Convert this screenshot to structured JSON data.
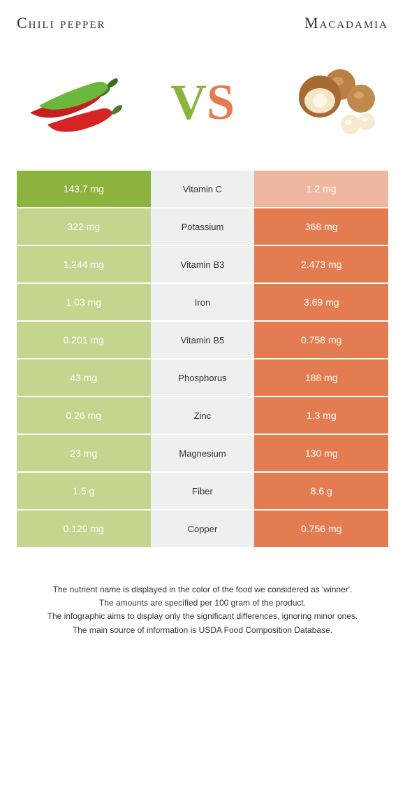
{
  "header": {
    "left_title": "Chili pepper",
    "right_title": "Macadamia"
  },
  "vs": {
    "v": "V",
    "s": "S"
  },
  "colors": {
    "green_solid": "#8cb33d",
    "green_faded": "#c4d68d",
    "orange_solid": "#e47c52",
    "orange_faded": "#efb79f",
    "mid_bg": "#eef0ef"
  },
  "rows": [
    {
      "left": "143.7 mg",
      "label": "Vitamin C",
      "right": "1.2 mg",
      "winner": "left"
    },
    {
      "left": "322 mg",
      "label": "Potassium",
      "right": "368 mg",
      "winner": "right"
    },
    {
      "left": "1.244 mg",
      "label": "Vitamin B3",
      "right": "2.473 mg",
      "winner": "right"
    },
    {
      "left": "1.03 mg",
      "label": "Iron",
      "right": "3.69 mg",
      "winner": "right"
    },
    {
      "left": "0.201 mg",
      "label": "Vitamin B5",
      "right": "0.758 mg",
      "winner": "right"
    },
    {
      "left": "43 mg",
      "label": "Phosphorus",
      "right": "188 mg",
      "winner": "right"
    },
    {
      "left": "0.26 mg",
      "label": "Zinc",
      "right": "1.3 mg",
      "winner": "right"
    },
    {
      "left": "23 mg",
      "label": "Magnesium",
      "right": "130 mg",
      "winner": "right"
    },
    {
      "left": "1.5 g",
      "label": "Fiber",
      "right": "8.6 g",
      "winner": "right"
    },
    {
      "left": "0.129 mg",
      "label": "Copper",
      "right": "0.756 mg",
      "winner": "right"
    }
  ],
  "footer": {
    "line1": "The nutrient name is displayed in the color of the food we considered as 'winner'.",
    "line2": "The amounts are specified per 100 gram of the product.",
    "line3": "The infographic aims to display only the significant differences, ignoring minor ones.",
    "line4": "The main source of information is USDA Food Composition Database."
  }
}
